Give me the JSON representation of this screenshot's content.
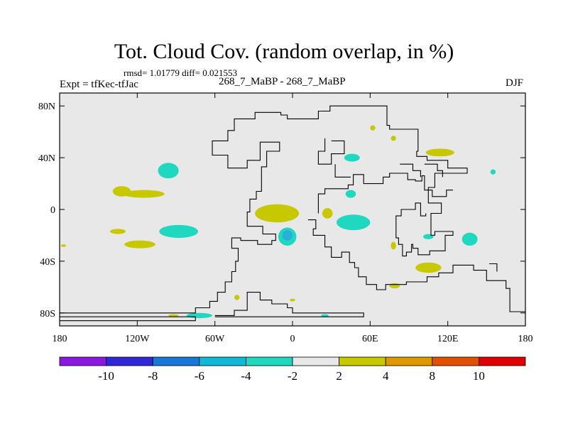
{
  "title": "Tot. Cloud Cov. (random overlap, in %)",
  "stats": "rmsd= 1.01779 diff= 0.021553",
  "experiment": "Expt = tfKec-tfJac",
  "subtitle": "268_7_MaBP - 268_7_MaBP",
  "season": "DJF",
  "colors": {
    "background": "#ffffff",
    "ocean_fill": "#e8e8e8",
    "coastline": "#000000",
    "anomaly_pos_2_4": "#c8c800",
    "anomaly_neg_2_4": "#20d8c0",
    "anomaly_neg_4_6": "#2ab0d8"
  },
  "chart_data": {
    "type": "heatmap",
    "projection": "cylindrical-equidistant",
    "xlim": [
      -180,
      180
    ],
    "ylim": [
      -90,
      90
    ],
    "x_ticks": [
      {
        "value": -180,
        "label": "180"
      },
      {
        "value": -120,
        "label": "120W"
      },
      {
        "value": -60,
        "label": "60W"
      },
      {
        "value": 0,
        "label": "0"
      },
      {
        "value": 60,
        "label": "60E"
      },
      {
        "value": 120,
        "label": "120E"
      },
      {
        "value": 180,
        "label": "180"
      }
    ],
    "y_ticks": [
      {
        "value": 80,
        "label": "80N"
      },
      {
        "value": 40,
        "label": "40N"
      },
      {
        "value": 0,
        "label": "0"
      },
      {
        "value": -40,
        "label": "40S"
      },
      {
        "value": -80,
        "label": "80S"
      }
    ],
    "colorbar": {
      "colors": [
        "#8a18e0",
        "#3028d8",
        "#1878d8",
        "#10b8d8",
        "#20d8c0",
        "#e8e8e8",
        "#c8c800",
        "#e09800",
        "#e05000",
        "#e00000"
      ],
      "labels": [
        "-10",
        "-8",
        "-6",
        "-4",
        "-2",
        "2",
        "4",
        "8",
        "10"
      ]
    },
    "anomalies": [
      {
        "lon": -96,
        "lat": 30,
        "rlon": 8,
        "rlat": 6,
        "sign": "neg",
        "level": 2
      },
      {
        "lon": -115,
        "lat": 12,
        "rlon": 16,
        "rlat": 3,
        "sign": "pos",
        "level": 1
      },
      {
        "lon": -132,
        "lat": 14,
        "rlon": 7,
        "rlat": 4,
        "sign": "pos",
        "level": 1
      },
      {
        "lon": -88,
        "lat": -17,
        "rlon": 15,
        "rlat": 5,
        "sign": "neg",
        "level": 2
      },
      {
        "lon": -118,
        "lat": -27,
        "rlon": 12,
        "rlat": 3,
        "sign": "pos",
        "level": 1
      },
      {
        "lon": -135,
        "lat": -17,
        "rlon": 6,
        "rlat": 2,
        "sign": "pos",
        "level": 1
      },
      {
        "lon": -12,
        "lat": -3,
        "rlon": 17,
        "rlat": 7,
        "sign": "pos",
        "level": 1
      },
      {
        "lon": -4,
        "lat": -21,
        "rlon": 7,
        "rlat": 7,
        "sign": "neg",
        "level": 2
      },
      {
        "lon": -4,
        "lat": -20,
        "rlon": 4,
        "rlat": 4,
        "sign": "neg",
        "level": 3
      },
      {
        "lon": 47,
        "lat": -10,
        "rlon": 13,
        "rlat": 6,
        "sign": "neg",
        "level": 2
      },
      {
        "lon": 27,
        "lat": -3,
        "rlon": 4,
        "rlat": 4,
        "sign": "pos",
        "level": 1
      },
      {
        "lon": 46,
        "lat": 40,
        "rlon": 6,
        "rlat": 3,
        "sign": "neg",
        "level": 2
      },
      {
        "lon": 114,
        "lat": 44,
        "rlon": 11,
        "rlat": 3,
        "sign": "pos",
        "level": 1
      },
      {
        "lon": 45,
        "lat": 12,
        "rlon": 4,
        "rlat": 3,
        "sign": "neg",
        "level": 2
      },
      {
        "lon": 137,
        "lat": -23,
        "rlon": 6,
        "rlat": 5,
        "sign": "neg",
        "level": 2
      },
      {
        "lon": 105,
        "lat": -45,
        "rlon": 10,
        "rlat": 4,
        "sign": "pos",
        "level": 1
      },
      {
        "lon": 79,
        "lat": -59,
        "rlon": 4,
        "rlat": 2,
        "sign": "pos",
        "level": 1
      },
      {
        "lon": 105,
        "lat": -21,
        "rlon": 4,
        "rlat": 2,
        "sign": "neg",
        "level": 2
      },
      {
        "lon": 62,
        "lat": 63,
        "rlon": 2,
        "rlat": 2,
        "sign": "pos",
        "level": 1
      },
      {
        "lon": 78,
        "lat": 55,
        "rlon": 2,
        "rlat": 2,
        "sign": "pos",
        "level": 1
      },
      {
        "lon": -72,
        "lat": -82,
        "rlon": 10,
        "rlat": 2,
        "sign": "neg",
        "level": 2
      },
      {
        "lon": -92,
        "lat": -82,
        "rlon": 4,
        "rlat": 1,
        "sign": "pos",
        "level": 1
      },
      {
        "lon": 78,
        "lat": -28,
        "rlon": 2,
        "rlat": 3,
        "sign": "pos",
        "level": 1
      },
      {
        "lon": 155,
        "lat": 29,
        "rlon": 2,
        "rlat": 2,
        "sign": "neg",
        "level": 2
      },
      {
        "lon": -177,
        "lat": -28,
        "rlon": 2,
        "rlat": 1,
        "sign": "pos",
        "level": 1
      },
      {
        "lon": 25,
        "lat": -82,
        "rlon": 3,
        "rlat": 1,
        "sign": "neg",
        "level": 2
      },
      {
        "lon": -43,
        "lat": -68,
        "rlon": 2,
        "rlat": 2,
        "sign": "pos",
        "level": 1
      },
      {
        "lon": 0,
        "lat": -70,
        "rlon": 2,
        "rlat": 1,
        "sign": "pos",
        "level": 1
      }
    ],
    "coastlines": [
      [
        [
          -180,
          -80
        ],
        [
          -75,
          -80
        ],
        [
          -75,
          -76
        ],
        [
          -64,
          -76
        ],
        [
          -64,
          -71
        ],
        [
          -58,
          -71
        ],
        [
          -58,
          -64
        ],
        [
          -52,
          -64
        ],
        [
          -52,
          -56
        ],
        [
          -47,
          -56
        ],
        [
          -47,
          -48
        ],
        [
          -44,
          -48
        ],
        [
          -44,
          -40
        ],
        [
          -42,
          -40
        ],
        [
          -42,
          -30
        ],
        [
          -47,
          -30
        ],
        [
          -47,
          -22
        ],
        [
          -40,
          -22
        ],
        [
          -40,
          -24
        ],
        [
          -27,
          -24
        ],
        [
          -27,
          -27
        ],
        [
          -16,
          -27
        ],
        [
          -16,
          -24
        ],
        [
          -13,
          -24
        ],
        [
          -13,
          -19
        ],
        [
          -23,
          -19
        ],
        [
          -23,
          -13
        ],
        [
          -35,
          -13
        ],
        [
          -35,
          -2
        ],
        [
          -33,
          -2
        ],
        [
          -33,
          8
        ],
        [
          -28,
          8
        ],
        [
          -28,
          14
        ],
        [
          -24,
          14
        ],
        [
          -24,
          33
        ],
        [
          -20,
          33
        ],
        [
          -20,
          45
        ],
        [
          -10,
          45
        ],
        [
          -10,
          52
        ],
        [
          -25,
          52
        ],
        [
          -25,
          38
        ],
        [
          -35,
          38
        ],
        [
          -35,
          32
        ],
        [
          -50,
          32
        ],
        [
          -50,
          42
        ],
        [
          -62,
          42
        ],
        [
          -62,
          53
        ],
        [
          -50,
          53
        ],
        [
          -50,
          61
        ],
        [
          -45,
          61
        ],
        [
          -45,
          70
        ],
        [
          -29,
          70
        ],
        [
          -29,
          75
        ],
        [
          -9,
          75
        ],
        [
          -9,
          73
        ],
        [
          -4,
          73
        ],
        [
          -4,
          70
        ],
        [
          20,
          70
        ],
        [
          20,
          76
        ],
        [
          29,
          76
        ],
        [
          29,
          80
        ],
        [
          73,
          80
        ],
        [
          73,
          65
        ],
        [
          75,
          65
        ],
        [
          75,
          62
        ],
        [
          97,
          62
        ],
        [
          97,
          45
        ],
        [
          96,
          45
        ],
        [
          96,
          41
        ],
        [
          104,
          41
        ],
        [
          104,
          38
        ],
        [
          120,
          38
        ],
        [
          120,
          32
        ],
        [
          135,
          32
        ],
        [
          135,
          28
        ],
        [
          110,
          28
        ],
        [
          110,
          17
        ],
        [
          105,
          17
        ],
        [
          105,
          5
        ],
        [
          115,
          5
        ],
        [
          115,
          -3
        ],
        [
          107,
          -3
        ],
        [
          107,
          -20
        ],
        [
          110,
          -20
        ],
        [
          110,
          -17
        ],
        [
          124,
          -17
        ],
        [
          124,
          -20
        ],
        [
          118,
          -20
        ],
        [
          118,
          -32
        ],
        [
          106,
          -32
        ],
        [
          106,
          -35
        ],
        [
          97,
          -35
        ],
        [
          97,
          -30
        ],
        [
          93,
          -30
        ],
        [
          93,
          -27
        ],
        [
          92,
          -27
        ],
        [
          92,
          -33
        ],
        [
          88,
          -33
        ],
        [
          88,
          -36
        ],
        [
          85,
          -36
        ],
        [
          85,
          -27
        ],
        [
          82,
          -27
        ],
        [
          82,
          -22
        ],
        [
          80,
          -22
        ],
        [
          80,
          -5
        ],
        [
          84,
          -5
        ],
        [
          84,
          0
        ],
        [
          95,
          0
        ],
        [
          95,
          5
        ],
        [
          99,
          5
        ],
        [
          99,
          -5
        ],
        [
          103,
          -5
        ],
        [
          103,
          -3
        ]
      ],
      [
        [
          -180,
          -83
        ],
        [
          -75,
          -83
        ],
        [
          -75,
          -86
        ],
        [
          -180,
          -86
        ]
      ],
      [
        [
          -60,
          -82
        ],
        [
          -45,
          -82
        ],
        [
          -45,
          -78
        ],
        [
          -35,
          -78
        ],
        [
          -35,
          -64
        ],
        [
          -25,
          -64
        ],
        [
          -25,
          -70
        ],
        [
          -16,
          -70
        ],
        [
          -16,
          -73
        ],
        [
          -4,
          -73
        ],
        [
          -4,
          -76
        ],
        [
          0,
          -76
        ],
        [
          0,
          -80
        ],
        [
          55,
          -80
        ],
        [
          55,
          -83
        ],
        [
          -60,
          -83
        ]
      ],
      [
        [
          12,
          -8
        ],
        [
          18,
          -8
        ],
        [
          18,
          -15
        ],
        [
          16,
          -15
        ],
        [
          16,
          -20
        ],
        [
          25,
          -20
        ],
        [
          25,
          -29
        ],
        [
          30,
          -29
        ],
        [
          30,
          -37
        ],
        [
          38,
          -37
        ],
        [
          38,
          -33
        ],
        [
          44,
          -33
        ],
        [
          44,
          -41
        ],
        [
          48,
          -41
        ],
        [
          48,
          -45
        ],
        [
          51,
          -45
        ],
        [
          51,
          -52
        ],
        [
          57,
          -52
        ],
        [
          57,
          -58
        ],
        [
          65,
          -58
        ],
        [
          65,
          -62
        ],
        [
          72,
          -62
        ],
        [
          72,
          -58
        ],
        [
          88,
          -58
        ],
        [
          88,
          -56
        ],
        [
          104,
          -56
        ],
        [
          104,
          -52
        ],
        [
          113,
          -52
        ],
        [
          113,
          -49
        ],
        [
          124,
          -49
        ],
        [
          124,
          -43
        ],
        [
          140,
          -43
        ],
        [
          140,
          -47
        ],
        [
          150,
          -47
        ],
        [
          150,
          -55
        ],
        [
          165,
          -55
        ],
        [
          165,
          -61
        ],
        [
          168,
          -61
        ],
        [
          168,
          -79
        ],
        [
          180,
          -79
        ]
      ],
      [
        [
          20,
          -3
        ],
        [
          20,
          12
        ],
        [
          25,
          12
        ],
        [
          25,
          16
        ],
        [
          43,
          16
        ],
        [
          43,
          19
        ],
        [
          47,
          19
        ],
        [
          47,
          27
        ],
        [
          55,
          27
        ],
        [
          55,
          20
        ],
        [
          70,
          20
        ],
        [
          70,
          25
        ],
        [
          75,
          25
        ],
        [
          75,
          28
        ],
        [
          89,
          28
        ],
        [
          89,
          23
        ],
        [
          95,
          23
        ],
        [
          95,
          22
        ],
        [
          100,
          22
        ],
        [
          100,
          26
        ],
        [
          102,
          26
        ],
        [
          102,
          15
        ],
        [
          108,
          15
        ],
        [
          108,
          10
        ],
        [
          119,
          10
        ],
        [
          119,
          15
        ],
        [
          124,
          15
        ]
      ],
      [
        [
          83,
          35
        ],
        [
          93,
          35
        ],
        [
          93,
          30
        ],
        [
          99,
          30
        ],
        [
          99,
          25
        ]
      ],
      [
        [
          102,
          35
        ],
        [
          112,
          35
        ],
        [
          112,
          30
        ],
        [
          116,
          30
        ],
        [
          116,
          25
        ]
      ],
      [
        [
          30,
          53
        ],
        [
          40,
          53
        ],
        [
          40,
          43
        ],
        [
          30,
          43
        ],
        [
          30,
          35
        ],
        [
          20,
          35
        ],
        [
          20,
          45
        ],
        [
          25,
          45
        ],
        [
          25,
          55
        ]
      ],
      [
        [
          33,
          35
        ],
        [
          33,
          25
        ],
        [
          45,
          25
        ]
      ],
      [
        [
          152,
          -42
        ],
        [
          158,
          -42
        ],
        [
          158,
          -48
        ]
      ]
    ]
  }
}
